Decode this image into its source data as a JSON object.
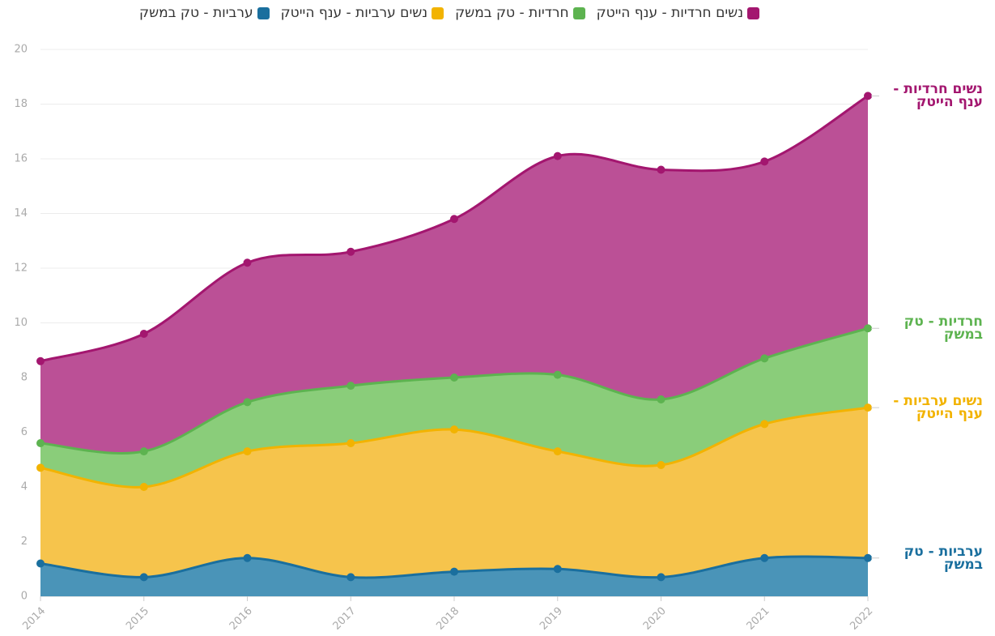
{
  "chart_data": {
    "type": "area",
    "stacked": true,
    "categories": [
      "2014",
      "2015",
      "2016",
      "2017",
      "2018",
      "2019",
      "2020",
      "2021",
      "2022"
    ],
    "series": [
      {
        "name": "ערביות - טק במשק",
        "color": "#1a6f9e",
        "fill": "#4a94b8",
        "values": [
          1.2,
          0.7,
          1.4,
          0.7,
          0.9,
          1.0,
          0.7,
          1.4,
          1.4
        ]
      },
      {
        "name": "נשים ערביות - ענף הייטק",
        "color": "#f2b300",
        "fill": "#f6c44c",
        "values": [
          3.5,
          3.3,
          3.9,
          4.9,
          5.2,
          4.3,
          4.1,
          4.9,
          5.5
        ]
      },
      {
        "name": "חרדיות - טק במשק",
        "color": "#5db350",
        "fill": "#8acd7a",
        "values": [
          0.9,
          1.3,
          1.8,
          2.1,
          1.9,
          2.8,
          2.4,
          2.4,
          2.9
        ]
      },
      {
        "name": "נשים חרדיות - ענף הייטק",
        "color": "#a3166f",
        "fill": "#bb5096",
        "values": [
          3.0,
          4.3,
          5.1,
          4.9,
          5.8,
          8.0,
          8.4,
          7.2,
          8.5
        ]
      }
    ],
    "ylim": [
      0,
      20
    ],
    "yticks": [
      0,
      2,
      4,
      6,
      8,
      10,
      12,
      14,
      16,
      18,
      20
    ],
    "grid": true,
    "legend": "top"
  }
}
